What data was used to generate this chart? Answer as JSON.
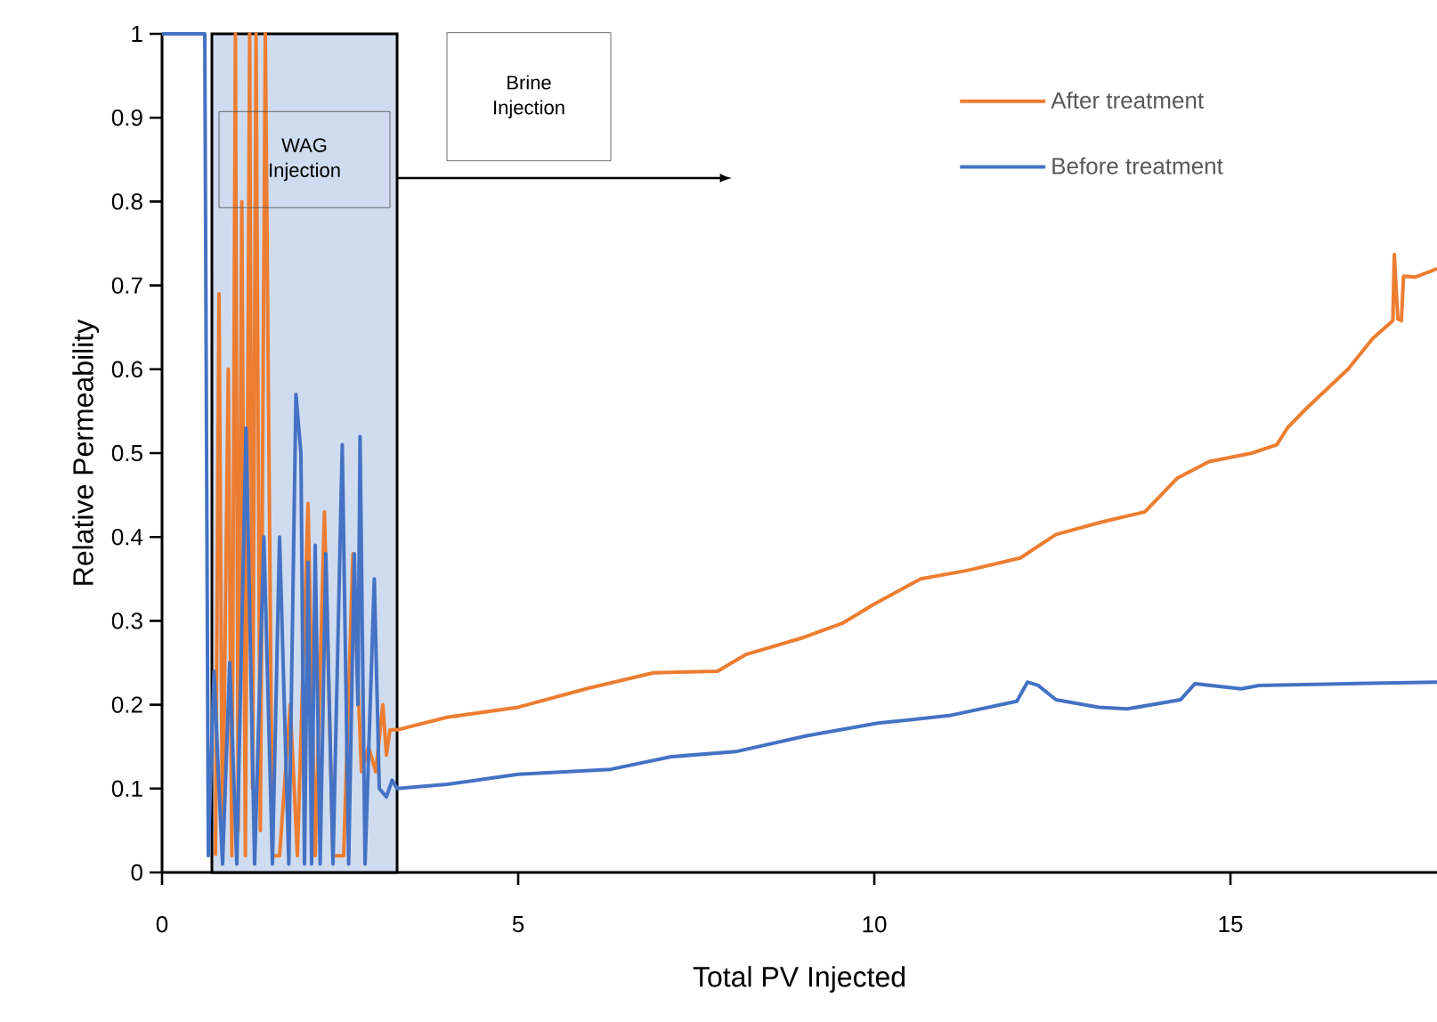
{
  "chart_data": {
    "type": "line",
    "xlabel": "Total PV Injected",
    "ylabel": "Relative Permeability",
    "xlim": [
      0,
      17.9
    ],
    "ylim": [
      0,
      1
    ],
    "xticks": [
      0,
      5,
      10,
      15
    ],
    "yticks": [
      0,
      0.1,
      0.2,
      0.3,
      0.4,
      0.5,
      0.6,
      0.7,
      0.8,
      0.9,
      1
    ],
    "legend": "top right",
    "line_style": "solid",
    "bands": [
      {
        "axis": "x",
        "from": 0.7,
        "to": 3.3,
        "label": "WAG Injection",
        "color": "#cfdcef"
      }
    ],
    "annotations": [
      "Brine Injection"
    ],
    "series": [
      {
        "name": "After treatment",
        "color": "#ed7d31",
        "x": [
          0.75,
          0.8,
          0.85,
          0.93,
          0.98,
          1.03,
          1.07,
          1.12,
          1.17,
          1.23,
          1.27,
          1.32,
          1.38,
          1.45,
          1.55,
          1.65,
          1.8,
          1.9,
          2.05,
          2.15,
          2.28,
          2.4,
          2.55,
          2.68,
          2.8,
          2.9,
          3.0,
          3.1,
          3.15,
          3.2,
          3.3,
          4.0,
          5.0,
          6.0,
          6.9,
          7.8,
          8.2,
          9.0,
          9.55,
          10.0,
          10.65,
          11.3,
          12.05,
          12.55,
          13.2,
          13.8,
          14.25,
          14.7,
          15.3,
          15.65,
          15.8,
          16.05,
          16.65,
          17.0,
          17.28,
          17.3,
          17.35,
          17.4,
          17.43,
          17.6,
          17.9
        ],
        "values": [
          0.02,
          0.69,
          0.02,
          0.6,
          0.02,
          1.0,
          0.05,
          0.8,
          0.02,
          1.0,
          0.1,
          1.0,
          0.05,
          1.0,
          0.02,
          0.02,
          0.2,
          0.02,
          0.44,
          0.02,
          0.43,
          0.02,
          0.02,
          0.38,
          0.12,
          0.15,
          0.12,
          0.2,
          0.14,
          0.17,
          0.17,
          0.185,
          0.197,
          0.22,
          0.238,
          0.24,
          0.26,
          0.28,
          0.297,
          0.32,
          0.35,
          0.36,
          0.375,
          0.403,
          0.418,
          0.43,
          0.47,
          0.49,
          0.5,
          0.51,
          0.53,
          0.552,
          0.6,
          0.637,
          0.658,
          0.737,
          0.66,
          0.658,
          0.711,
          0.71,
          0.72
        ]
      },
      {
        "name": "Before treatment",
        "color": "#4472c4",
        "x": [
          0,
          0.6,
          0.65,
          0.73,
          0.8,
          0.85,
          0.95,
          1.05,
          1.18,
          1.3,
          1.43,
          1.55,
          1.65,
          1.78,
          1.88,
          1.95,
          2.0,
          2.05,
          2.1,
          2.15,
          2.22,
          2.3,
          2.4,
          2.53,
          2.62,
          2.7,
          2.75,
          2.78,
          2.85,
          2.98,
          3.05,
          3.15,
          3.23,
          3.3,
          4.0,
          5.0,
          6.3,
          7.15,
          8.05,
          9.05,
          10.05,
          11.05,
          12.0,
          12.15,
          12.3,
          12.55,
          13.15,
          13.55,
          14.3,
          14.5,
          15.15,
          15.4,
          17.9
        ],
        "values": [
          1,
          1,
          0.02,
          0.24,
          0.1,
          0.01,
          0.25,
          0.01,
          0.53,
          0.01,
          0.4,
          0.01,
          0.4,
          0.01,
          0.57,
          0.5,
          0.01,
          0.37,
          0.01,
          0.39,
          0.01,
          0.38,
          0.01,
          0.51,
          0.01,
          0.38,
          0.2,
          0.52,
          0.01,
          0.35,
          0.1,
          0.09,
          0.11,
          0.1,
          0.105,
          0.117,
          0.123,
          0.138,
          0.144,
          0.163,
          0.178,
          0.187,
          0.204,
          0.227,
          0.223,
          0.206,
          0.197,
          0.195,
          0.206,
          0.225,
          0.219,
          0.223,
          0.227
        ]
      }
    ]
  }
}
